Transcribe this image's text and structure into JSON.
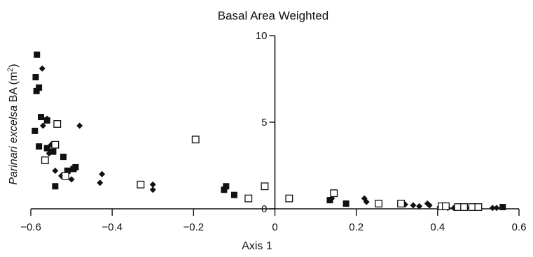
{
  "chart_data": {
    "type": "scatter",
    "title": "Basal Area Weighted",
    "xlabel": "Axis 1",
    "ylabel": {
      "italic": "Parinari excelsa",
      "rest": " BA (m",
      "sup": "2",
      "close": ")"
    },
    "xlim": [
      -0.6,
      0.6
    ],
    "ylim": [
      0,
      10
    ],
    "xticks": [
      -0.6,
      -0.4,
      -0.2,
      0,
      0.2,
      0.4,
      0.6
    ],
    "xtick_labels": [
      "−0.6",
      "−0.4",
      "−0.2",
      "0",
      "0.2",
      "0.4",
      "0.6"
    ],
    "yticks": [
      0,
      5,
      10
    ],
    "ytick_labels": [
      "0",
      "5",
      "10"
    ],
    "grid": false,
    "colors": {
      "marker": "#111111"
    },
    "series": [
      {
        "marker": "filled-square",
        "points": [
          [
            -0.585,
            8.9
          ],
          [
            -0.588,
            7.6
          ],
          [
            -0.58,
            7.0
          ],
          [
            -0.586,
            6.8
          ],
          [
            -0.575,
            5.3
          ],
          [
            -0.59,
            4.5
          ],
          [
            -0.56,
            5.1
          ],
          [
            -0.58,
            3.6
          ],
          [
            -0.56,
            3.5
          ],
          [
            -0.545,
            3.3
          ],
          [
            -0.52,
            3.0
          ],
          [
            -0.51,
            2.2
          ],
          [
            -0.495,
            2.3
          ],
          [
            -0.49,
            2.4
          ],
          [
            -0.54,
            1.3
          ],
          [
            -0.12,
            1.3
          ],
          [
            -0.125,
            1.1
          ],
          [
            -0.1,
            0.8
          ],
          [
            0.135,
            0.5
          ],
          [
            0.175,
            0.3
          ],
          [
            0.56,
            0.1
          ]
        ]
      },
      {
        "marker": "filled-diamond",
        "points": [
          [
            -0.572,
            8.1
          ],
          [
            -0.56,
            5.2
          ],
          [
            -0.57,
            4.8
          ],
          [
            -0.48,
            4.8
          ],
          [
            -0.55,
            3.7
          ],
          [
            -0.555,
            3.2
          ],
          [
            -0.54,
            2.2
          ],
          [
            -0.525,
            1.9
          ],
          [
            -0.5,
            1.7
          ],
          [
            -0.425,
            2.0
          ],
          [
            -0.43,
            1.5
          ],
          [
            -0.3,
            1.4
          ],
          [
            -0.3,
            1.1
          ],
          [
            0.14,
            0.6
          ],
          [
            0.22,
            0.6
          ],
          [
            0.225,
            0.4
          ],
          [
            0.32,
            0.25
          ],
          [
            0.34,
            0.2
          ],
          [
            0.355,
            0.15
          ],
          [
            0.375,
            0.3
          ],
          [
            0.38,
            0.2
          ],
          [
            0.405,
            0.1
          ],
          [
            0.425,
            0.05
          ],
          [
            0.44,
            0.05
          ],
          [
            0.48,
            0.05
          ],
          [
            0.49,
            0.05
          ],
          [
            0.535,
            0.05
          ],
          [
            0.545,
            0.05
          ]
        ]
      },
      {
        "marker": "open-square",
        "points": [
          [
            -0.535,
            4.9
          ],
          [
            -0.54,
            3.7
          ],
          [
            -0.565,
            2.8
          ],
          [
            -0.515,
            1.9
          ],
          [
            -0.33,
            1.4
          ],
          [
            -0.195,
            4.0
          ],
          [
            -0.065,
            0.6
          ],
          [
            -0.025,
            1.3
          ],
          [
            0.035,
            0.6
          ],
          [
            0.145,
            0.9
          ],
          [
            0.255,
            0.3
          ],
          [
            0.31,
            0.3
          ],
          [
            0.41,
            0.15
          ],
          [
            0.42,
            0.15
          ],
          [
            0.45,
            0.1
          ],
          [
            0.465,
            0.1
          ],
          [
            0.485,
            0.1
          ],
          [
            0.5,
            0.1
          ]
        ]
      }
    ]
  }
}
